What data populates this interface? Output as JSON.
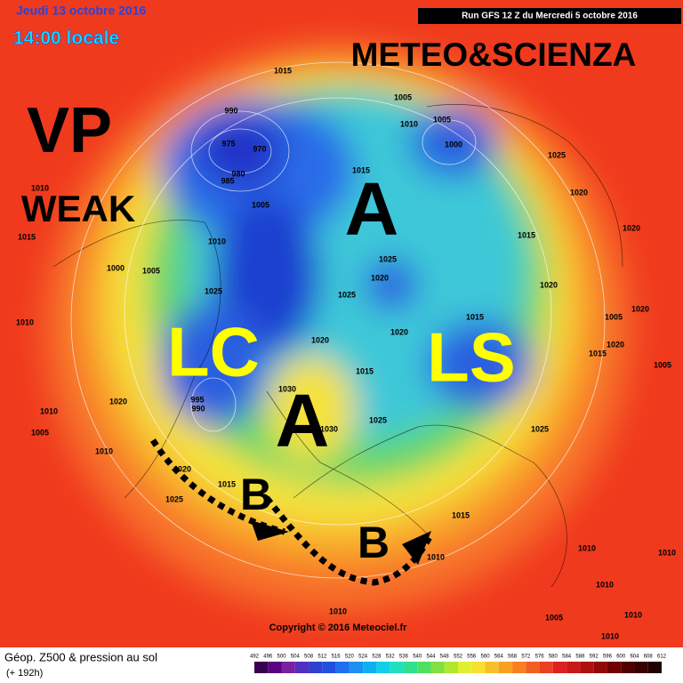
{
  "header": {
    "date": "Jeudi 13 octobre 2016",
    "time": "14:00 locale",
    "run": "Run GFS 12 Z du Mercredi 5 octobre 2016",
    "brand": "METEO&SCIENZA"
  },
  "annotations": {
    "vp": "VP",
    "weak": "WEAK",
    "a1": "A",
    "a2": "A",
    "lc": "LC",
    "ls": "LS",
    "b1": "B",
    "b2": "B"
  },
  "pressure_labels": [
    "1015",
    "1005",
    "990",
    "975",
    "970",
    "980",
    "985",
    "1005",
    "1000",
    "1010",
    "1025",
    "1015",
    "1010",
    "1020",
    "1005",
    "1010",
    "1015",
    "1015",
    "1020",
    "1000",
    "1005",
    "1025",
    "1020",
    "1025",
    "1025",
    "1020",
    "1010",
    "1015",
    "1005",
    "1020",
    "1020",
    "1020",
    "1020",
    "1015",
    "1005",
    "1015",
    "1030",
    "1020",
    "1010",
    "1005",
    "995",
    "990",
    "1025",
    "1030",
    "1025",
    "1010",
    "1020",
    "1015",
    "1025",
    "1015",
    "1010",
    "1010",
    "1010",
    "1010",
    "1005",
    "1010",
    "1010",
    "1010"
  ],
  "footer": {
    "copyright": "Copyright © 2016 Meteociel.fr",
    "title": "Géop. Z500 & pression au sol",
    "lead": "(+ 192h)"
  },
  "colorbar": [
    492,
    496,
    500,
    504,
    508,
    512,
    516,
    520,
    524,
    528,
    532,
    536,
    540,
    544,
    548,
    552,
    556,
    560,
    564,
    568,
    572,
    576,
    580,
    584,
    588,
    592,
    596,
    600,
    604,
    608,
    612
  ]
}
